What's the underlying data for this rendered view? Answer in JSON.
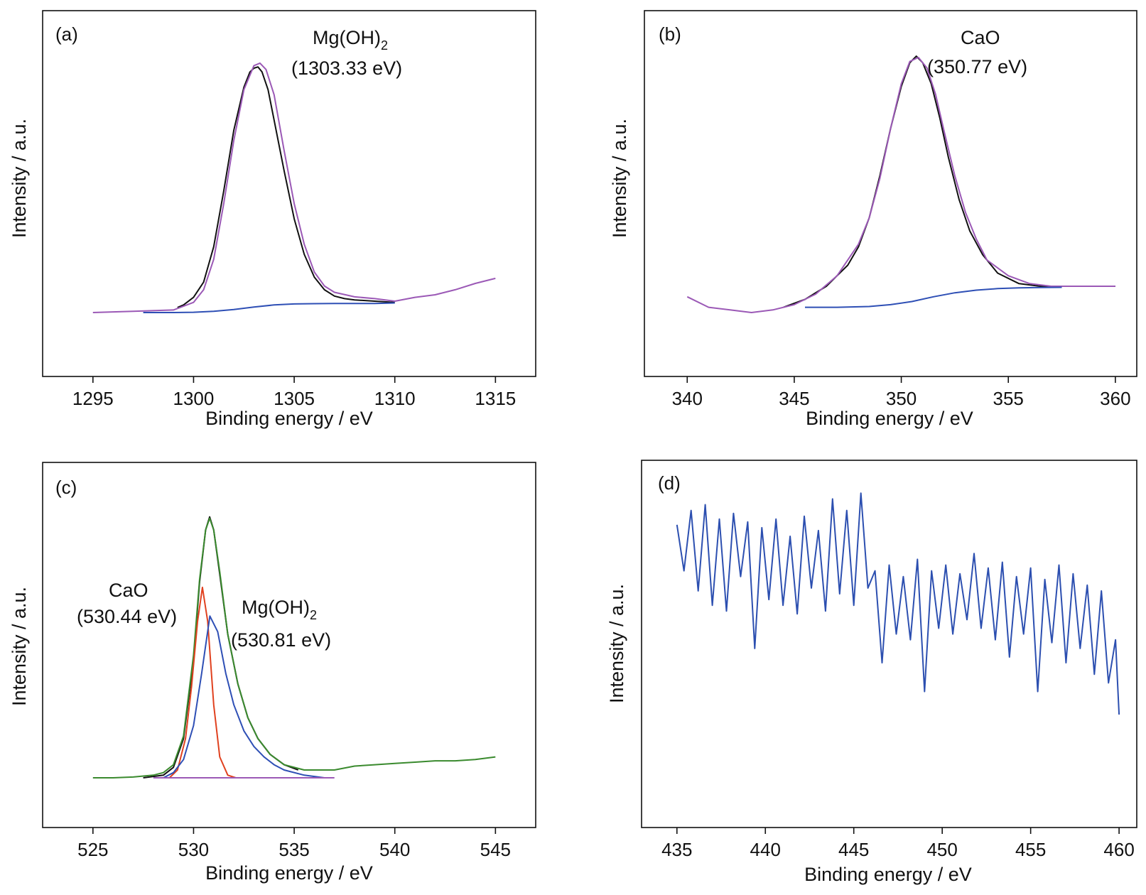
{
  "panels": [
    {
      "id": "a",
      "panel_label": "(a)",
      "xlabel": "Binding energy / eV",
      "ylabel": "Intensity / a.u.",
      "annotations": [
        {
          "lines": [
            "Mg(OH)",
            "(1303.33 eV)"
          ],
          "subscript": "2"
        }
      ]
    },
    {
      "id": "b",
      "panel_label": "(b)",
      "xlabel": "Binding energy / eV",
      "ylabel": "Intensity / a.u.",
      "annotations": [
        {
          "lines": [
            "CaO",
            "(350.77 eV)"
          ],
          "subscript": ""
        }
      ]
    },
    {
      "id": "c",
      "panel_label": "(c)",
      "xlabel": "Binding energy / eV",
      "ylabel": "Intensity / a.u.",
      "annotations": [
        {
          "lines": [
            "CaO",
            "(530.44 eV)"
          ],
          "subscript": ""
        },
        {
          "lines": [
            "Mg(OH)",
            "(530.81 eV)"
          ],
          "subscript": "2"
        }
      ]
    },
    {
      "id": "d",
      "panel_label": "(d)",
      "xlabel": "Binding energy / eV",
      "ylabel": "Intensity / a.u.",
      "annotations": []
    }
  ],
  "chart_data": [
    {
      "type": "line",
      "panel": "(a)",
      "xlabel": "Binding energy / eV",
      "ylabel": "Intensity / a.u.",
      "xlim": [
        1292.5,
        1317
      ],
      "ylim": [
        0,
        1.08
      ],
      "xticks": [
        1295,
        1300,
        1305,
        1310,
        1315
      ],
      "y_ticks_shown": false,
      "series": [
        {
          "role": "raw",
          "color": "#111111",
          "x": [
            1299.2,
            1299.5,
            1300.0,
            1300.5,
            1301.0,
            1301.5,
            1302.0,
            1302.5,
            1302.8,
            1303.0,
            1303.2,
            1303.4,
            1303.7,
            1304.0,
            1304.5,
            1305.0,
            1305.5,
            1306.0,
            1306.5,
            1307.0,
            1307.5,
            1308.0,
            1309.0,
            1310.0
          ],
          "y": [
            0.02,
            0.03,
            0.06,
            0.12,
            0.26,
            0.48,
            0.72,
            0.89,
            0.95,
            0.965,
            0.97,
            0.95,
            0.88,
            0.76,
            0.56,
            0.37,
            0.23,
            0.14,
            0.09,
            0.065,
            0.055,
            0.05,
            0.045,
            0.04
          ]
        },
        {
          "role": "fit",
          "color": "#9b59b6",
          "x": [
            1295,
            1297,
            1299,
            1300,
            1300.5,
            1301,
            1301.5,
            1302,
            1302.5,
            1303.0,
            1303.3,
            1303.6,
            1304,
            1304.5,
            1305,
            1305.5,
            1306,
            1306.5,
            1307,
            1308,
            1309,
            1310,
            1311,
            1312,
            1313,
            1314,
            1315
          ],
          "y": [
            0.0,
            0.005,
            0.01,
            0.04,
            0.09,
            0.21,
            0.43,
            0.68,
            0.88,
            0.975,
            0.985,
            0.96,
            0.86,
            0.64,
            0.43,
            0.27,
            0.16,
            0.105,
            0.08,
            0.062,
            0.055,
            0.045,
            0.06,
            0.07,
            0.09,
            0.115,
            0.135
          ]
        },
        {
          "role": "background",
          "color": "#2e4fb5",
          "x": [
            1297.5,
            1299,
            1300,
            1301,
            1302,
            1303,
            1304,
            1305,
            1306,
            1307,
            1308,
            1309,
            1310
          ],
          "y": [
            0.0,
            0.0,
            0.001,
            0.005,
            0.012,
            0.022,
            0.03,
            0.034,
            0.035,
            0.036,
            0.036,
            0.036,
            0.038
          ]
        }
      ]
    },
    {
      "type": "line",
      "panel": "(b)",
      "xlabel": "Binding energy / eV",
      "ylabel": "Intensity / a.u.",
      "xlim": [
        338,
        361
      ],
      "ylim": [
        0,
        1.04
      ],
      "xticks": [
        340,
        345,
        350,
        355,
        360
      ],
      "y_ticks_shown": false,
      "series": [
        {
          "role": "raw",
          "color": "#111111",
          "x": [
            344.5,
            345.5,
            346.5,
            347.5,
            348.0,
            348.5,
            349.0,
            349.5,
            350.0,
            350.4,
            350.7,
            351.0,
            351.4,
            351.8,
            352.2,
            352.7,
            353.2,
            353.8,
            354.5,
            355.5,
            356.5,
            357.5,
            358.5,
            360.0
          ],
          "y": [
            0.02,
            0.05,
            0.1,
            0.18,
            0.25,
            0.36,
            0.52,
            0.7,
            0.86,
            0.95,
            0.975,
            0.95,
            0.87,
            0.74,
            0.59,
            0.43,
            0.31,
            0.22,
            0.15,
            0.11,
            0.1,
            0.1,
            0.1,
            0.1
          ]
        },
        {
          "role": "fit",
          "color": "#9b59b6",
          "x": [
            340.0,
            341.0,
            342.0,
            343.0,
            344.0,
            345.0,
            346.0,
            347.0,
            348.0,
            348.5,
            349.0,
            349.5,
            350.0,
            350.4,
            350.8,
            351.2,
            351.6,
            352.0,
            352.5,
            353.0,
            353.5,
            354.0,
            355.0,
            356.0,
            357.0,
            358.0,
            360.0
          ],
          "y": [
            0.06,
            0.02,
            0.01,
            0.0,
            0.01,
            0.03,
            0.07,
            0.14,
            0.26,
            0.36,
            0.51,
            0.7,
            0.87,
            0.955,
            0.97,
            0.93,
            0.83,
            0.69,
            0.52,
            0.38,
            0.28,
            0.2,
            0.14,
            0.11,
            0.1,
            0.1,
            0.1
          ]
        },
        {
          "role": "background",
          "color": "#2e4fb5",
          "x": [
            345.5,
            347.0,
            348.5,
            349.5,
            350.5,
            351.5,
            352.5,
            353.5,
            354.5,
            355.5,
            356.5,
            357.5
          ],
          "y": [
            0.02,
            0.02,
            0.023,
            0.03,
            0.042,
            0.06,
            0.075,
            0.085,
            0.091,
            0.094,
            0.095,
            0.096
          ]
        }
      ]
    },
    {
      "type": "line",
      "panel": "(c)",
      "xlabel": "Binding energy / eV",
      "ylabel": "Intensity / a.u.",
      "xlim": [
        522.5,
        547
      ],
      "ylim": [
        0,
        1.1
      ],
      "xticks": [
        525,
        530,
        535,
        540,
        545
      ],
      "y_ticks_shown": false,
      "series": [
        {
          "role": "raw",
          "color": "#111111",
          "x": [
            527.5,
            528.5,
            529.0,
            529.5,
            530.0,
            530.3,
            530.6,
            530.8,
            531.0,
            531.3,
            531.7,
            532.2,
            532.7,
            533.2,
            533.8,
            534.5,
            535.2
          ],
          "y": [
            0.0,
            0.01,
            0.04,
            0.15,
            0.45,
            0.75,
            0.95,
            1.0,
            0.95,
            0.78,
            0.55,
            0.36,
            0.23,
            0.15,
            0.09,
            0.05,
            0.03
          ]
        },
        {
          "role": "envelope fit",
          "color": "#3a8a2e",
          "x": [
            525.0,
            526.0,
            527.0,
            528.0,
            528.5,
            529.0,
            529.5,
            530.0,
            530.3,
            530.6,
            530.8,
            531.0,
            531.3,
            531.7,
            532.2,
            532.7,
            533.2,
            533.8,
            534.5,
            535.5,
            537.0,
            538.0,
            539.0,
            540.0,
            541.0,
            542.0,
            543.0,
            544.0,
            545.0
          ],
          "y": [
            0.0,
            0.0,
            0.003,
            0.01,
            0.02,
            0.05,
            0.16,
            0.47,
            0.76,
            0.95,
            0.995,
            0.95,
            0.79,
            0.55,
            0.36,
            0.23,
            0.15,
            0.09,
            0.05,
            0.03,
            0.03,
            0.045,
            0.05,
            0.055,
            0.06,
            0.065,
            0.065,
            0.07,
            0.08
          ]
        },
        {
          "name": "CaO",
          "role": "component",
          "color": "#e0411f",
          "x": [
            528.8,
            529.2,
            529.6,
            529.9,
            530.2,
            530.44,
            530.7,
            531.0,
            531.3,
            531.7,
            532.1
          ],
          "y": [
            0.0,
            0.03,
            0.15,
            0.35,
            0.6,
            0.73,
            0.6,
            0.28,
            0.08,
            0.01,
            0.0
          ]
        },
        {
          "name": "Mg(OH)2",
          "role": "component",
          "color": "#2e4fb5",
          "x": [
            528.5,
            529.0,
            529.5,
            530.0,
            530.4,
            530.81,
            531.2,
            531.6,
            532.0,
            532.5,
            533.0,
            533.5,
            534.0,
            534.5,
            535.5,
            536.5
          ],
          "y": [
            0.0,
            0.02,
            0.07,
            0.2,
            0.4,
            0.62,
            0.56,
            0.4,
            0.28,
            0.18,
            0.12,
            0.08,
            0.05,
            0.03,
            0.01,
            0.0
          ]
        },
        {
          "role": "background",
          "color": "#9b59b6",
          "x": [
            528.0,
            537.0
          ],
          "y": [
            0.0,
            0.0
          ]
        }
      ]
    },
    {
      "type": "line",
      "panel": "(d)",
      "xlabel": "Binding energy / eV",
      "ylabel": "Intensity / a.u.",
      "xlim": [
        433,
        461
      ],
      "ylim": [
        0,
        1.06
      ],
      "xticks": [
        435,
        440,
        445,
        450,
        455,
        460
      ],
      "y_ticks_shown": false,
      "series": [
        {
          "role": "spectrum",
          "color": "#2c4fb0",
          "x": [
            435.0,
            435.4,
            435.8,
            436.2,
            436.6,
            437.0,
            437.4,
            437.8,
            438.2,
            438.6,
            439.0,
            439.4,
            439.8,
            440.2,
            440.6,
            441.0,
            441.4,
            441.8,
            442.2,
            442.6,
            443.0,
            443.4,
            443.8,
            444.2,
            444.6,
            445.0,
            445.4,
            445.8,
            446.2,
            446.6,
            447.0,
            447.4,
            447.8,
            448.2,
            448.6,
            449.0,
            449.4,
            449.8,
            450.2,
            450.6,
            451.0,
            451.4,
            451.8,
            452.2,
            452.6,
            453.0,
            453.4,
            453.8,
            454.2,
            454.6,
            455.0,
            455.4,
            455.8,
            456.2,
            456.6,
            457.0,
            457.4,
            457.8,
            458.2,
            458.6,
            459.0,
            459.4,
            459.8,
            460.0
          ],
          "y": [
            0.88,
            0.72,
            0.93,
            0.65,
            0.95,
            0.6,
            0.9,
            0.58,
            0.92,
            0.7,
            0.89,
            0.45,
            0.87,
            0.62,
            0.9,
            0.6,
            0.84,
            0.57,
            0.91,
            0.66,
            0.86,
            0.58,
            0.97,
            0.64,
            0.93,
            0.6,
            0.99,
            0.66,
            0.72,
            0.4,
            0.74,
            0.5,
            0.7,
            0.48,
            0.76,
            0.3,
            0.72,
            0.52,
            0.74,
            0.5,
            0.71,
            0.55,
            0.78,
            0.52,
            0.73,
            0.48,
            0.75,
            0.42,
            0.7,
            0.5,
            0.73,
            0.3,
            0.69,
            0.47,
            0.74,
            0.4,
            0.71,
            0.45,
            0.67,
            0.36,
            0.65,
            0.33,
            0.48,
            0.22
          ]
        }
      ]
    }
  ]
}
